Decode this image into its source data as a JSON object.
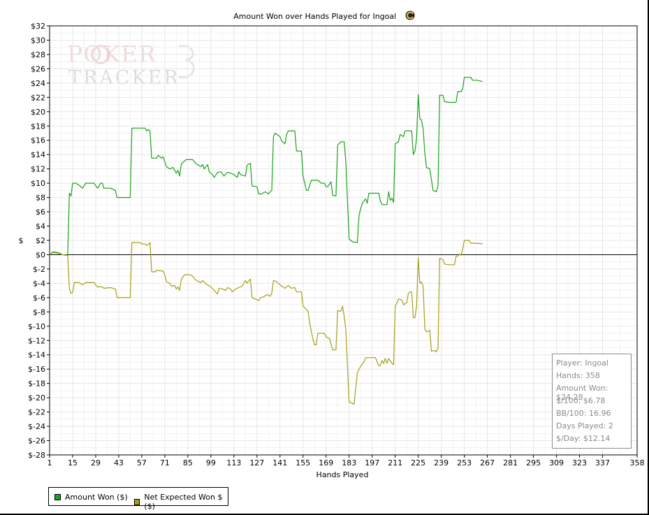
{
  "chart_data": {
    "type": "line",
    "title": "Amount Won over Hands Played for Ingoal",
    "xlabel": "Hands Played",
    "ylabel": "$",
    "xlim": [
      1,
      358
    ],
    "ylim": [
      -28,
      32
    ],
    "x_ticks": [
      "1",
      "15",
      "29",
      "43",
      "57",
      "71",
      "85",
      "99",
      "113",
      "127",
      "141",
      "155",
      "169",
      "183",
      "197",
      "211",
      "225",
      "239",
      "253",
      "267",
      "281",
      "295",
      "309",
      "323",
      "337",
      "358"
    ],
    "y_ticks": [
      "$32",
      "$30",
      "$28",
      "$26",
      "$24",
      "$22",
      "$20",
      "$18",
      "$16",
      "$14",
      "$12",
      "$10",
      "$8",
      "$6",
      "$4",
      "$2",
      "$0",
      "$-2",
      "$-4",
      "$-6",
      "$-8",
      "$-10",
      "$-12",
      "$-14",
      "$-16",
      "$-18",
      "$-20",
      "$-22",
      "$-24",
      "$-26",
      "$-28"
    ],
    "grid": true,
    "legend_position": "bottom-left",
    "series": [
      {
        "name": "Amount Won ($)",
        "color": "#1aa21a",
        "points": [
          [
            1,
            0
          ],
          [
            3,
            0.4
          ],
          [
            6,
            0.3
          ],
          [
            9,
            0
          ],
          [
            12,
            -0.1
          ],
          [
            13,
            8.6
          ],
          [
            14,
            8.2
          ],
          [
            15,
            10
          ],
          [
            17,
            10
          ],
          [
            19,
            9.7
          ],
          [
            21,
            9.3
          ],
          [
            23,
            10
          ],
          [
            28,
            10
          ],
          [
            30,
            9.3
          ],
          [
            31,
            9.6
          ],
          [
            32,
            10
          ],
          [
            33,
            10
          ],
          [
            34,
            9.3
          ],
          [
            38,
            9.3
          ],
          [
            41,
            9
          ],
          [
            42,
            8
          ],
          [
            50,
            8
          ],
          [
            51,
            17.7
          ],
          [
            59,
            17.7
          ],
          [
            60,
            17.3
          ],
          [
            61,
            17.5
          ],
          [
            62,
            17.3
          ],
          [
            63,
            13.5
          ],
          [
            66,
            13.5
          ],
          [
            67,
            13.9
          ],
          [
            69,
            13.5
          ],
          [
            70,
            13.7
          ],
          [
            72,
            12.3
          ],
          [
            74,
            12
          ],
          [
            76,
            12.2
          ],
          [
            78,
            11.4
          ],
          [
            79,
            11.8
          ],
          [
            80,
            11
          ],
          [
            81,
            12.7
          ],
          [
            84,
            13.3
          ],
          [
            88,
            13.3
          ],
          [
            90,
            12.7
          ],
          [
            93,
            12.3
          ],
          [
            94,
            12.6
          ],
          [
            95,
            12
          ],
          [
            97,
            12.6
          ],
          [
            98,
            11.6
          ],
          [
            100,
            11.2
          ],
          [
            101,
            10.8
          ],
          [
            103,
            11.5
          ],
          [
            105,
            11.6
          ],
          [
            107,
            11
          ],
          [
            109,
            11.5
          ],
          [
            110,
            11.5
          ],
          [
            113,
            11.2
          ],
          [
            115,
            10.8
          ],
          [
            116,
            11.6
          ],
          [
            117,
            11.2
          ],
          [
            120,
            11
          ],
          [
            121,
            12.5
          ],
          [
            123,
            12.8
          ],
          [
            124,
            9.6
          ],
          [
            127,
            9.5
          ],
          [
            128,
            8.5
          ],
          [
            130,
            8.5
          ],
          [
            132,
            8.8
          ],
          [
            134,
            8.5
          ],
          [
            135,
            8.8
          ],
          [
            136,
            9
          ],
          [
            137,
            16.5
          ],
          [
            138,
            17
          ],
          [
            141,
            16.5
          ],
          [
            142,
            15.9
          ],
          [
            144,
            15.5
          ],
          [
            145,
            16.8
          ],
          [
            146,
            17.3
          ],
          [
            150,
            17.3
          ],
          [
            151,
            14.5
          ],
          [
            154,
            14.5
          ],
          [
            155,
            11
          ],
          [
            157,
            9
          ],
          [
            158,
            9
          ],
          [
            160,
            10.4
          ],
          [
            164,
            10.4
          ],
          [
            166,
            10
          ],
          [
            168,
            10
          ],
          [
            169,
            9.5
          ],
          [
            170,
            9.5
          ],
          [
            172,
            10.2
          ],
          [
            173,
            8.3
          ],
          [
            175,
            8.2
          ],
          [
            176,
            15.3
          ],
          [
            178,
            15.8
          ],
          [
            180,
            15.8
          ],
          [
            181,
            13
          ],
          [
            183,
            2.2
          ],
          [
            185,
            1.8
          ],
          [
            188,
            1.7
          ],
          [
            189,
            5.5
          ],
          [
            190,
            6.4
          ],
          [
            191,
            7.2
          ],
          [
            193,
            7.8
          ],
          [
            194,
            7.2
          ],
          [
            195,
            8.6
          ],
          [
            201,
            8.6
          ],
          [
            202,
            7.5
          ],
          [
            203,
            7
          ],
          [
            206,
            7
          ],
          [
            207,
            8.8
          ],
          [
            208,
            7.6
          ],
          [
            209,
            7.9
          ],
          [
            210,
            7.3
          ],
          [
            211,
            15.5
          ],
          [
            213,
            15.8
          ],
          [
            214,
            16.8
          ],
          [
            216,
            16.5
          ],
          [
            217,
            17.3
          ],
          [
            221,
            17.3
          ],
          [
            222,
            14
          ],
          [
            223,
            14.5
          ],
          [
            224,
            16.2
          ],
          [
            225,
            22.4
          ],
          [
            226,
            19
          ],
          [
            227,
            18.8
          ],
          [
            228,
            17.5
          ],
          [
            229,
            14.2
          ],
          [
            230,
            12.2
          ],
          [
            232,
            12
          ],
          [
            234,
            9
          ],
          [
            236,
            8.8
          ],
          [
            237,
            9.6
          ],
          [
            238,
            22.3
          ],
          [
            240,
            22.3
          ],
          [
            241,
            21.4
          ],
          [
            244,
            21.3
          ],
          [
            248,
            21.3
          ],
          [
            249,
            22.8
          ],
          [
            251,
            22.8
          ],
          [
            252,
            23.2
          ],
          [
            253,
            24.8
          ],
          [
            257,
            24.8
          ],
          [
            258,
            24.4
          ],
          [
            261,
            24.4
          ],
          [
            264,
            24.2
          ]
        ]
      },
      {
        "name": "Net Expected Won $ ($)",
        "color": "#a3a017",
        "points": [
          [
            1,
            0
          ],
          [
            3,
            0.3
          ],
          [
            6,
            0.2
          ],
          [
            9,
            0
          ],
          [
            12,
            -0.1
          ],
          [
            13,
            -4.8
          ],
          [
            14,
            -5.4
          ],
          [
            15,
            -5.3
          ],
          [
            16,
            -3.9
          ],
          [
            19,
            -3.9
          ],
          [
            21,
            -4.2
          ],
          [
            23,
            -3.9
          ],
          [
            28,
            -3.9
          ],
          [
            30,
            -4.5
          ],
          [
            33,
            -4.5
          ],
          [
            34,
            -4.7
          ],
          [
            38,
            -4.6
          ],
          [
            41,
            -4.8
          ],
          [
            42,
            -6
          ],
          [
            50,
            -6
          ],
          [
            51,
            1.7
          ],
          [
            56,
            1.7
          ],
          [
            57,
            1.5
          ],
          [
            59,
            1.5
          ],
          [
            60,
            1.3
          ],
          [
            61,
            1.4
          ],
          [
            62,
            1.7
          ],
          [
            63,
            -2.4
          ],
          [
            65,
            -2.4
          ],
          [
            66,
            -2.2
          ],
          [
            70,
            -2.3
          ],
          [
            71,
            -2.8
          ],
          [
            72,
            -3.8
          ],
          [
            74,
            -4
          ],
          [
            75,
            -4.4
          ],
          [
            77,
            -4.3
          ],
          [
            78,
            -4.8
          ],
          [
            79,
            -4.5
          ],
          [
            80,
            -5
          ],
          [
            81,
            -3.4
          ],
          [
            83,
            -2.8
          ],
          [
            86,
            -2.8
          ],
          [
            88,
            -3
          ],
          [
            89,
            -3.4
          ],
          [
            91,
            -3.7
          ],
          [
            93,
            -3.9
          ],
          [
            94,
            -3.6
          ],
          [
            96,
            -4.1
          ],
          [
            99,
            -4.5
          ],
          [
            101,
            -5
          ],
          [
            103,
            -5.5
          ],
          [
            104,
            -4.7
          ],
          [
            106,
            -4.8
          ],
          [
            108,
            -5
          ],
          [
            109,
            -4.6
          ],
          [
            111,
            -4.8
          ],
          [
            112,
            -5.2
          ],
          [
            114,
            -4.8
          ],
          [
            116,
            -4.6
          ],
          [
            118,
            -4.4
          ],
          [
            120,
            -3.6
          ],
          [
            121,
            -4
          ],
          [
            123,
            -3.4
          ],
          [
            124,
            -6
          ],
          [
            127,
            -6.3
          ],
          [
            128,
            -6.4
          ],
          [
            129,
            -6
          ],
          [
            131,
            -5.9
          ],
          [
            133,
            -5.6
          ],
          [
            135,
            -5.8
          ],
          [
            136,
            -5.4
          ],
          [
            137,
            -3.6
          ],
          [
            139,
            -3.8
          ],
          [
            140,
            -4
          ],
          [
            142,
            -4.4
          ],
          [
            144,
            -4.7
          ],
          [
            146,
            -4.3
          ],
          [
            148,
            -4.7
          ],
          [
            150,
            -4.6
          ],
          [
            151,
            -5.2
          ],
          [
            154,
            -5.2
          ],
          [
            155,
            -7.2
          ],
          [
            158,
            -7.9
          ],
          [
            159,
            -9.5
          ],
          [
            161,
            -11.8
          ],
          [
            162,
            -12.6
          ],
          [
            163,
            -12.6
          ],
          [
            164,
            -11
          ],
          [
            168,
            -11
          ],
          [
            169,
            -11.5
          ],
          [
            171,
            -11.7
          ],
          [
            172,
            -12.5
          ],
          [
            173,
            -13.3
          ],
          [
            175,
            -13.3
          ],
          [
            176,
            -7.8
          ],
          [
            178,
            -7.9
          ],
          [
            179,
            -7.2
          ],
          [
            180,
            -8.6
          ],
          [
            181,
            -10.5
          ],
          [
            183,
            -20.6
          ],
          [
            186,
            -20.9
          ],
          [
            188,
            -16.5
          ],
          [
            190,
            -15.6
          ],
          [
            192,
            -15
          ],
          [
            193,
            -14.4
          ],
          [
            199,
            -14.4
          ],
          [
            201,
            -15.5
          ],
          [
            202,
            -15.5
          ],
          [
            203,
            -14.8
          ],
          [
            204,
            -15.2
          ],
          [
            205,
            -14.5
          ],
          [
            206,
            -15.2
          ],
          [
            207,
            -14.5
          ],
          [
            209,
            -15.2
          ],
          [
            210,
            -15.4
          ],
          [
            211,
            -7.2
          ],
          [
            212,
            -6.8
          ],
          [
            213,
            -6.2
          ],
          [
            215,
            -6.3
          ],
          [
            216,
            -7
          ],
          [
            218,
            -6.7
          ],
          [
            219,
            -5.4
          ],
          [
            220,
            -5.2
          ],
          [
            221,
            -5.2
          ],
          [
            222,
            -8.8
          ],
          [
            223,
            -8.8
          ],
          [
            224,
            -7.2
          ],
          [
            225,
            -0.4
          ],
          [
            226,
            -4
          ],
          [
            227,
            -3.8
          ],
          [
            228,
            -4.5
          ],
          [
            229,
            -10.4
          ],
          [
            230,
            -10.8
          ],
          [
            232,
            -10.6
          ],
          [
            233,
            -13.5
          ],
          [
            235,
            -13.4
          ],
          [
            236,
            -13.6
          ],
          [
            237,
            -13
          ],
          [
            238,
            -0.5
          ],
          [
            240,
            -0.7
          ],
          [
            241,
            -1.3
          ],
          [
            243,
            -1.4
          ],
          [
            247,
            -1.4
          ],
          [
            248,
            -0.2
          ],
          [
            249,
            -0.2
          ],
          [
            250,
            0.1
          ],
          [
            251,
            -0.1
          ],
          [
            252,
            0.8
          ],
          [
            253,
            2
          ],
          [
            256,
            2
          ],
          [
            257,
            1.6
          ],
          [
            261,
            1.6
          ],
          [
            264,
            1.5
          ]
        ]
      }
    ]
  },
  "legend": {
    "items": [
      {
        "label": "Amount Won ($)",
        "color": "#1aa21a"
      },
      {
        "label": "Net Expected Won $ ($)",
        "color": "#a3a017"
      }
    ]
  },
  "info_box": {
    "lines": [
      "Player: Ingoal",
      "Hands: 358",
      "Amount Won: $24.28",
      "$/100: $6.78",
      "BB/100: 16.96",
      "Days Played: 2",
      "$/Day: $12.14"
    ]
  },
  "watermark": {
    "poker": "POKER",
    "tracker": "TRACKER"
  },
  "icons": {
    "title_logo": "c-logo-icon"
  }
}
